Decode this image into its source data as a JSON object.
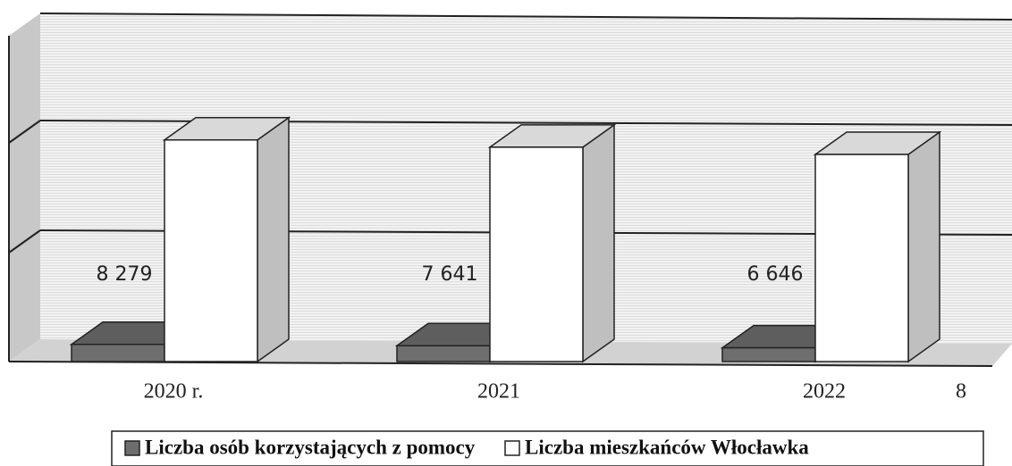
{
  "chart_data": {
    "type": "bar3d",
    "categories": [
      "2020 r.",
      "2021",
      "2022",
      "8"
    ],
    "series": [
      {
        "name": "Liczba osób korzystających z pomocy",
        "color": "#6e6e6e",
        "values": [
          8279,
          7641,
          6646,
          null
        ],
        "value_labels": [
          "8 279",
          "7 641",
          "6 646",
          null
        ]
      },
      {
        "name": "Liczba mieszkańców Włocławka",
        "color": "#ffffff",
        "values": [
          107000,
          103500,
          100000,
          null
        ]
      }
    ],
    "ylim": [
      0,
      150000
    ],
    "legend": "bottom"
  }
}
